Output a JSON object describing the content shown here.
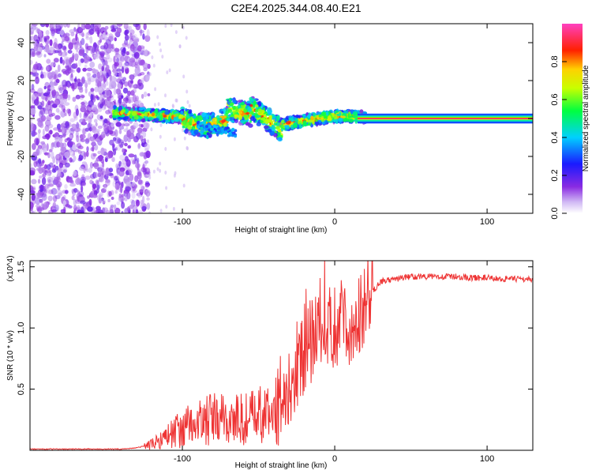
{
  "title": "C2E4.2025.344.08.40.E21",
  "chart_data": [
    {
      "type": "heatmap",
      "title": "C2E4.2025.344.08.40.E21",
      "xlabel": "Height of straight line (km)",
      "ylabel": "Frequency (Hz)",
      "xlim": [
        -200,
        130
      ],
      "ylim": [
        -50,
        50
      ],
      "xticks": [
        -100,
        0,
        100
      ],
      "yticks": [
        -40,
        -20,
        0,
        20,
        40
      ],
      "xtick_labels": [
        "-100",
        "0",
        "100"
      ],
      "ytick_labels": [
        "-40",
        "-20",
        "0",
        "20",
        "40"
      ],
      "colorbar": {
        "label": "Normalized spectral amplitude",
        "range": [
          0.0,
          1.0
        ],
        "ticks": [
          0.0,
          0.2,
          0.4,
          0.6,
          0.8
        ],
        "tick_labels": [
          "0.0",
          "0.2",
          "0.4",
          "0.6",
          "0.8"
        ],
        "colormap": "rainbow (white-purple-blue-cyan-green-yellow-red-magenta)"
      },
      "features": [
        {
          "region": "x from -200 to -125 km",
          "description": "scattered low-amplitude purple noise across all frequencies"
        },
        {
          "region": "x from -145 to 20 km",
          "description": "narrow band near 0 Hz wandering between about -8 and +10 Hz, amplitude 0.2-0.9"
        },
        {
          "region": "x from 20 to 130 km",
          "description": "steady line at 0 Hz with amplitude about 1.0"
        }
      ]
    },
    {
      "type": "line",
      "xlabel": "Height of straight line (km)",
      "ylabel": "SNR (10 * v/v)",
      "y_multiplier": "(x10^4)",
      "xlim": [
        -200,
        130
      ],
      "ylim": [
        0,
        1.55
      ],
      "xticks": [
        -100,
        0,
        100
      ],
      "yticks": [
        0.5,
        1.0,
        1.5
      ],
      "xtick_labels": [
        "-100",
        "0",
        "100"
      ],
      "ytick_labels": [
        "0.5",
        "1.0",
        "1.5"
      ],
      "color": "#ee3333",
      "series": [
        {
          "name": "SNR",
          "x": [
            -200,
            -180,
            -160,
            -140,
            -130,
            -120,
            -110,
            -100,
            -90,
            -80,
            -70,
            -60,
            -50,
            -40,
            -30,
            -25,
            -20,
            -15,
            -10,
            -5,
            0,
            5,
            10,
            15,
            20,
            25,
            30,
            40,
            50,
            60,
            70,
            80,
            90,
            100,
            110,
            120,
            130
          ],
          "y": [
            0.01,
            0.01,
            0.01,
            0.01,
            0.02,
            0.05,
            0.12,
            0.18,
            0.22,
            0.25,
            0.25,
            0.25,
            0.28,
            0.3,
            0.55,
            0.7,
            0.8,
            0.9,
            0.95,
            1.05,
            1.0,
            1.05,
            1.0,
            1.1,
            1.2,
            1.3,
            1.38,
            1.4,
            1.42,
            1.42,
            1.42,
            1.42,
            1.41,
            1.41,
            1.4,
            1.4,
            1.4
          ]
        }
      ]
    }
  ]
}
